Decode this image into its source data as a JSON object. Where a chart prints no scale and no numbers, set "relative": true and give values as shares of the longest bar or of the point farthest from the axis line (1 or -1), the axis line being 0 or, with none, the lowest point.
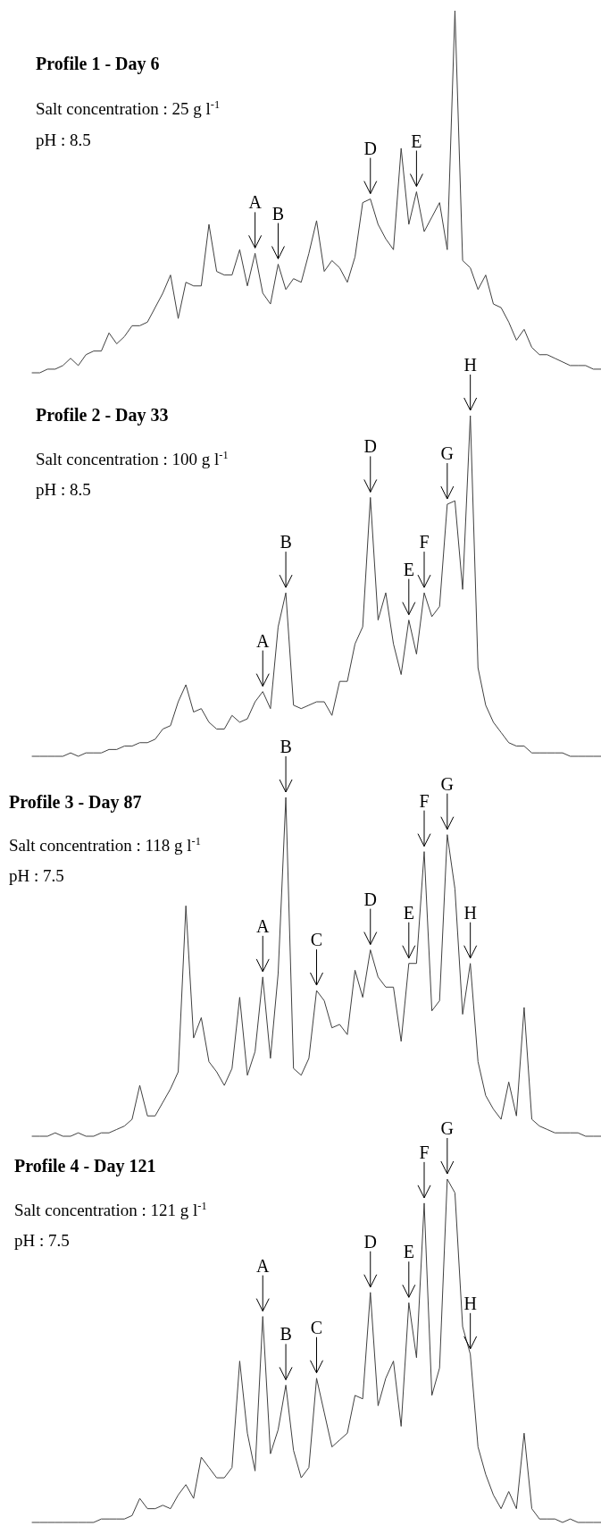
{
  "chart_data": [
    {
      "type": "line",
      "title": "Profile 1 - Day 6",
      "subtitle": "Salt concentration : 25 g l$^{-1}$",
      "annotations": [
        "pH : 8.5"
      ],
      "relative": true,
      "categories": [
        null,
        null,
        null,
        null,
        null,
        null,
        null,
        null,
        null,
        null,
        null,
        null,
        null,
        null,
        null,
        null,
        null,
        null,
        null,
        null,
        null,
        null,
        null,
        null,
        null,
        null,
        null,
        null,
        null,
        "A",
        null,
        null,
        "B",
        null,
        null,
        null,
        null,
        null,
        null,
        null,
        null,
        null,
        null,
        null,
        "D",
        null,
        null,
        null,
        null,
        null,
        "E",
        null,
        null,
        null,
        null,
        null,
        null,
        null,
        null,
        null,
        null,
        null,
        null,
        null,
        null,
        null,
        null,
        null,
        null,
        null,
        null,
        null,
        null,
        null,
        null
      ],
      "series": [
        {
          "color": "#404040",
          "values": [
            0,
            0,
            0.01,
            0.01,
            0.02,
            0.04,
            0.02,
            0.05,
            0.06,
            0.06,
            0.11,
            0.08,
            0.1,
            0.13,
            0.13,
            0.14,
            0.18,
            0.22,
            0.27,
            0.15,
            0.25,
            0.24,
            0.24,
            0.41,
            0.28,
            0.27,
            0.27,
            0.34,
            0.24,
            0.33,
            0.22,
            0.19,
            0.3,
            0.23,
            0.26,
            0.25,
            0.33,
            0.42,
            0.28,
            0.31,
            0.29,
            0.25,
            0.32,
            0.47,
            0.48,
            0.41,
            0.37,
            0.34,
            0.62,
            0.41,
            0.5,
            0.39,
            0.43,
            0.47,
            0.34,
            1,
            0.31,
            0.29,
            0.23,
            0.27,
            0.19,
            0.18,
            0.14,
            0.09,
            0.12,
            0.07,
            0.05,
            0.05,
            0.04,
            0.03,
            0.02,
            0.02,
            0.02,
            0.01,
            0.01
          ]
        }
      ]
    },
    {
      "type": "line",
      "title": "Profile 2 - Day 33",
      "subtitle": "Salt concentration : 100 g l$^{-1}$",
      "annotations": [
        "pH : 8.5"
      ],
      "relative": true,
      "categories": [
        null,
        null,
        null,
        null,
        null,
        null,
        null,
        null,
        null,
        null,
        null,
        null,
        null,
        null,
        null,
        null,
        null,
        null,
        null,
        null,
        null,
        null,
        null,
        null,
        null,
        null,
        null,
        null,
        null,
        null,
        "A",
        null,
        null,
        "B",
        null,
        null,
        null,
        null,
        null,
        null,
        null,
        null,
        null,
        null,
        "D",
        null,
        null,
        null,
        null,
        "E",
        null,
        "F",
        null,
        null,
        "G",
        null,
        null,
        "H",
        null,
        null,
        null,
        null,
        null,
        null,
        null,
        null,
        null,
        null,
        null,
        null,
        null,
        null,
        null,
        null,
        null
      ],
      "series": [
        {
          "color": "#404040",
          "values": [
            0,
            0,
            0,
            0,
            0,
            0.01,
            0,
            0.01,
            0.01,
            0.01,
            0.02,
            0.02,
            0.03,
            0.03,
            0.04,
            0.04,
            0.05,
            0.08,
            0.09,
            0.16,
            0.21,
            0.13,
            0.14,
            0.1,
            0.08,
            0.08,
            0.12,
            0.1,
            0.11,
            0.16,
            0.19,
            0.14,
            0.38,
            0.48,
            0.15,
            0.14,
            0.15,
            0.16,
            0.16,
            0.12,
            0.22,
            0.22,
            0.33,
            0.38,
            0.76,
            0.4,
            0.48,
            0.33,
            0.24,
            0.4,
            0.3,
            0.48,
            0.41,
            0.44,
            0.74,
            0.75,
            0.49,
            1,
            0.26,
            0.15,
            0.1,
            0.07,
            0.04,
            0.03,
            0.03,
            0.01,
            0.01,
            0.01,
            0.01,
            0.01,
            0,
            0,
            0,
            0,
            0
          ]
        }
      ]
    },
    {
      "type": "line",
      "title": "Profile 3 - Day 87",
      "subtitle": "Salt concentration : 118 g l$^{-1}$",
      "annotations": [
        "pH : 7.5"
      ],
      "relative": true,
      "categories": [
        null,
        null,
        null,
        null,
        null,
        null,
        null,
        null,
        null,
        null,
        null,
        null,
        null,
        null,
        null,
        null,
        null,
        null,
        null,
        null,
        null,
        null,
        null,
        null,
        null,
        null,
        null,
        null,
        null,
        null,
        "A",
        null,
        null,
        "B",
        null,
        null,
        null,
        "C",
        null,
        null,
        null,
        null,
        null,
        null,
        "D",
        null,
        null,
        null,
        null,
        "E",
        null,
        "F",
        null,
        null,
        "G",
        null,
        null,
        "H",
        null,
        null,
        null,
        null,
        null,
        null,
        null,
        null,
        null,
        null,
        null,
        null,
        null,
        null,
        null,
        null,
        null
      ],
      "series": [
        {
          "color": "#404040",
          "values": [
            0,
            0,
            0,
            0.01,
            0,
            0,
            0.01,
            0,
            0,
            0.01,
            0.01,
            0.02,
            0.03,
            0.05,
            0.15,
            0.06,
            0.06,
            0.1,
            0.14,
            0.19,
            0.68,
            0.29,
            0.35,
            0.22,
            0.19,
            0.15,
            0.2,
            0.41,
            0.18,
            0.25,
            0.47,
            0.23,
            0.48,
            1,
            0.2,
            0.18,
            0.23,
            0.43,
            0.4,
            0.32,
            0.33,
            0.3,
            0.49,
            0.41,
            0.55,
            0.47,
            0.44,
            0.44,
            0.28,
            0.51,
            0.51,
            0.84,
            0.37,
            0.4,
            0.89,
            0.73,
            0.36,
            0.51,
            0.22,
            0.12,
            0.08,
            0.05,
            0.16,
            0.06,
            0.38,
            0.05,
            0.03,
            0.02,
            0.01,
            0.01,
            0.01,
            0.01,
            0,
            0,
            0
          ]
        }
      ]
    },
    {
      "type": "line",
      "title": "Profile 4 - Day 121",
      "subtitle": "Salt concentration : 121 g l$^{-1}$",
      "annotations": [
        "pH : 7.5"
      ],
      "relative": true,
      "categories": [
        null,
        null,
        null,
        null,
        null,
        null,
        null,
        null,
        null,
        null,
        null,
        null,
        null,
        null,
        null,
        null,
        null,
        null,
        null,
        null,
        null,
        null,
        null,
        null,
        null,
        null,
        null,
        null,
        null,
        null,
        "A",
        null,
        null,
        "B",
        null,
        null,
        null,
        "C",
        null,
        null,
        null,
        null,
        null,
        null,
        "D",
        null,
        null,
        null,
        null,
        "E",
        null,
        "F",
        null,
        null,
        "G",
        null,
        null,
        "H",
        null,
        null,
        null,
        null,
        null,
        null,
        null,
        null,
        null,
        null,
        null,
        null,
        null,
        null,
        null,
        null,
        null
      ],
      "series": [
        {
          "color": "#404040",
          "values": [
            0,
            0,
            0,
            0,
            0,
            0,
            0,
            0,
            0,
            0.01,
            0.01,
            0.01,
            0.01,
            0.02,
            0.07,
            0.04,
            0.04,
            0.05,
            0.04,
            0.08,
            0.11,
            0.07,
            0.19,
            0.16,
            0.13,
            0.13,
            0.16,
            0.47,
            0.26,
            0.15,
            0.6,
            0.2,
            0.27,
            0.4,
            0.21,
            0.13,
            0.16,
            0.42,
            0.32,
            0.22,
            0.24,
            0.26,
            0.37,
            0.36,
            0.67,
            0.34,
            0.42,
            0.47,
            0.28,
            0.64,
            0.48,
            0.93,
            0.37,
            0.45,
            1,
            0.96,
            0.57,
            0.49,
            0.22,
            0.14,
            0.08,
            0.04,
            0.09,
            0.04,
            0.26,
            0.04,
            0.01,
            0.01,
            0.01,
            0,
            0.01,
            0,
            0,
            0,
            0
          ]
        }
      ]
    }
  ]
}
